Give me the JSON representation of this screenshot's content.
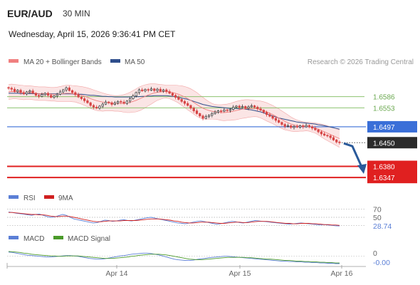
{
  "header": {
    "pair": "EUR/AUD",
    "timeframe": "30 MIN",
    "datetime": "Wednesday, April 15, 2026 9:36:41 PM CET"
  },
  "legend": {
    "ma20_label": "MA 20 + Bollinger Bands",
    "ma50_label": "MA 50",
    "source": "Research © 2026 Trading Central",
    "rsi_label": "RSI",
    "rsi_ma_label": "9MA",
    "macd_label": "MACD",
    "macd_signal_label": "MACD Signal"
  },
  "colors": {
    "price_up": "#333333",
    "price_down": "#d64545",
    "ma20": "#f08080",
    "bollinger": "#f7c5c5",
    "ma50": "#2e4e8c",
    "support": "#e02020",
    "resistance": "#8dc26f",
    "current": "#3a6fd8",
    "arrow": "#2a5a9a",
    "rsi": "#5b7fd6",
    "rsi_ma": "#d02020",
    "macd": "#5b7fd6",
    "macd_signal": "#4a9a2a"
  },
  "chart_data": [
    {
      "type": "candlestick",
      "name": "price",
      "x_ticks": [
        "Apr 14",
        "Apr 15",
        "Apr 16"
      ],
      "ylim": [
        1.632,
        1.664
      ],
      "levels": [
        {
          "label": "1.6586",
          "value": 1.6586,
          "kind": "resistance"
        },
        {
          "label": "1.6553",
          "value": 1.6553,
          "kind": "resistance"
        },
        {
          "label": "1.6497",
          "value": 1.6497,
          "kind": "current-line"
        },
        {
          "label": "1.6450",
          "value": 1.645,
          "kind": "last-price"
        },
        {
          "label": "1.6380",
          "value": 1.638,
          "kind": "support"
        },
        {
          "label": "1.6347",
          "value": 1.6347,
          "kind": "support"
        }
      ],
      "close": [
        1.6611,
        1.6608,
        1.6601,
        1.6605,
        1.6598,
        1.6594,
        1.66,
        1.6603,
        1.6596,
        1.659,
        1.6587,
        1.6592,
        1.6596,
        1.659,
        1.6584,
        1.6588,
        1.6593,
        1.66,
        1.6606,
        1.6612,
        1.6604,
        1.6598,
        1.6592,
        1.6585,
        1.658,
        1.6574,
        1.6568,
        1.656,
        1.6555,
        1.6552,
        1.6558,
        1.6564,
        1.657,
        1.6568,
        1.6563,
        1.6567,
        1.6572,
        1.657,
        1.6566,
        1.6573,
        1.658,
        1.6588,
        1.6598,
        1.6606,
        1.6603,
        1.6607,
        1.6605,
        1.6609,
        1.6604,
        1.6608,
        1.6602,
        1.6606,
        1.6601,
        1.6596,
        1.659,
        1.6584,
        1.6578,
        1.6572,
        1.6566,
        1.656,
        1.6552,
        1.6544,
        1.6536,
        1.6529,
        1.6522,
        1.6527,
        1.6531,
        1.6536,
        1.654,
        1.6544,
        1.6543,
        1.6547,
        1.6545,
        1.6548,
        1.6555,
        1.6558,
        1.6554,
        1.6557,
        1.6552,
        1.6556,
        1.6559,
        1.6555,
        1.655,
        1.6546,
        1.654,
        1.6533,
        1.6528,
        1.6522,
        1.6516,
        1.651,
        1.6504,
        1.6498,
        1.65,
        1.6495,
        1.6498,
        1.6496,
        1.65,
        1.6497,
        1.6501,
        1.6497,
        1.6493,
        1.6488,
        1.6482,
        1.6476,
        1.6472,
        1.647,
        1.6465,
        1.6458,
        1.6452,
        1.645
      ],
      "ma20": [
        1.66,
        1.6601,
        1.6601,
        1.66,
        1.6599,
        1.6598,
        1.6598,
        1.6598,
        1.6597,
        1.6596,
        1.6595,
        1.6595,
        1.6595,
        1.6594,
        1.6593,
        1.6593,
        1.6593,
        1.6594,
        1.6595,
        1.6596,
        1.6596,
        1.6595,
        1.6594,
        1.6592,
        1.659,
        1.6587,
        1.6584,
        1.658,
        1.6577,
        1.6574,
        1.6572,
        1.657,
        1.6569,
        1.6568,
        1.6567,
        1.6566,
        1.6566,
        1.6566,
        1.6566,
        1.6567,
        1.6569,
        1.6572,
        1.6575,
        1.6579,
        1.6583,
        1.6587,
        1.6591,
        1.6594,
        1.6597,
        1.6599,
        1.66,
        1.6601,
        1.6601,
        1.66,
        1.6598,
        1.6596,
        1.6593,
        1.6589,
        1.6585,
        1.658,
        1.6575,
        1.6569,
        1.6563,
        1.6557,
        1.6552,
        1.6548,
        1.6545,
        1.6543,
        1.6541,
        1.654,
        1.6539,
        1.6539,
        1.654,
        1.6541,
        1.6543,
        1.6545,
        1.6547,
        1.6549,
        1.655,
        1.6551,
        1.6551,
        1.6551,
        1.655,
        1.6548,
        1.6545,
        1.6541,
        1.6537,
        1.6533,
        1.6528,
        1.6523,
        1.6518,
        1.6513,
        1.6509,
        1.6505,
        1.6502,
        1.65,
        1.6499,
        1.6498,
        1.6498,
        1.6497,
        1.6495,
        1.6493,
        1.649,
        1.6486,
        1.6482,
        1.6478,
        1.6474,
        1.647,
        1.6466,
        1.6462
      ],
      "bb_upper": [
        1.6622,
        1.6623,
        1.6622,
        1.6621,
        1.662,
        1.6619,
        1.6618,
        1.6618,
        1.6617,
        1.6616,
        1.6615,
        1.6615,
        1.6615,
        1.6614,
        1.6613,
        1.6613,
        1.6614,
        1.6616,
        1.6618,
        1.662,
        1.662,
        1.6619,
        1.6618,
        1.6617,
        1.6616,
        1.6614,
        1.6612,
        1.6609,
        1.6606,
        1.6603,
        1.66,
        1.6597,
        1.6594,
        1.6592,
        1.659,
        1.6589,
        1.6589,
        1.659,
        1.6592,
        1.6595,
        1.6599,
        1.6604,
        1.6609,
        1.6614,
        1.6618,
        1.6621,
        1.6623,
        1.6624,
        1.6624,
        1.6623,
        1.6622,
        1.6621,
        1.662,
        1.662,
        1.662,
        1.662,
        1.6619,
        1.6618,
        1.6616,
        1.6613,
        1.6609,
        1.6604,
        1.6598,
        1.6591,
        1.6584,
        1.6577,
        1.6571,
        1.6566,
        1.6563,
        1.6562,
        1.6562,
        1.6563,
        1.6564,
        1.6566,
        1.6569,
        1.6572,
        1.6574,
        1.6576,
        1.6577,
        1.6577,
        1.6576,
        1.6575,
        1.6574,
        1.6573,
        1.6571,
        1.6568,
        1.6564,
        1.656,
        1.6555,
        1.655,
        1.6544,
        1.6538,
        1.6532,
        1.6526,
        1.6521,
        1.6517,
        1.6514,
        1.6512,
        1.6511,
        1.651,
        1.6509,
        1.6508,
        1.6507,
        1.6505,
        1.6503,
        1.65,
        1.6497,
        1.6494,
        1.6491,
        1.6488
      ],
      "bb_lower": [
        1.6578,
        1.6579,
        1.658,
        1.6579,
        1.6578,
        1.6577,
        1.6578,
        1.6578,
        1.6577,
        1.6576,
        1.6575,
        1.6575,
        1.6575,
        1.6574,
        1.6573,
        1.6573,
        1.6572,
        1.6572,
        1.6572,
        1.6572,
        1.6572,
        1.6571,
        1.657,
        1.6567,
        1.6564,
        1.656,
        1.6556,
        1.6551,
        1.6548,
        1.6545,
        1.6544,
        1.6543,
        1.6544,
        1.6544,
        1.6544,
        1.6543,
        1.6543,
        1.6542,
        1.654,
        1.6539,
        1.6539,
        1.654,
        1.6541,
        1.6544,
        1.6548,
        1.6553,
        1.6559,
        1.6564,
        1.657,
        1.6575,
        1.6578,
        1.6581,
        1.6582,
        1.658,
        1.6576,
        1.6572,
        1.6567,
        1.656,
        1.6554,
        1.6547,
        1.6541,
        1.6534,
        1.6528,
        1.6523,
        1.652,
        1.6519,
        1.6519,
        1.652,
        1.6519,
        1.6518,
        1.6516,
        1.6515,
        1.6516,
        1.6516,
        1.6517,
        1.6518,
        1.652,
        1.6522,
        1.6523,
        1.6525,
        1.6526,
        1.6527,
        1.6526,
        1.6523,
        1.6519,
        1.6514,
        1.651,
        1.6506,
        1.6501,
        1.6496,
        1.6492,
        1.6488,
        1.6486,
        1.6484,
        1.6483,
        1.6483,
        1.6484,
        1.6484,
        1.6485,
        1.6484,
        1.6481,
        1.6478,
        1.6473,
        1.6467,
        1.6461,
        1.6456,
        1.6451,
        1.6446,
        1.6441,
        1.6436
      ],
      "ma50": [
        1.6596,
        1.6596,
        1.6596,
        1.6596,
        1.6595,
        1.6595,
        1.6595,
        1.6595,
        1.6595,
        1.6595,
        1.6594,
        1.6594,
        1.6594,
        1.6594,
        1.6594,
        1.6594,
        1.6594,
        1.6594,
        1.6594,
        1.6594,
        1.6594,
        1.6594,
        1.6593,
        1.6593,
        1.6593,
        1.6592,
        1.6591,
        1.659,
        1.659,
        1.6589,
        1.6588,
        1.6587,
        1.6587,
        1.6586,
        1.6586,
        1.6585,
        1.6585,
        1.6585,
        1.6585,
        1.6585,
        1.6585,
        1.6585,
        1.6586,
        1.6586,
        1.6587,
        1.6587,
        1.6588,
        1.6588,
        1.6589,
        1.6589,
        1.6589,
        1.6589,
        1.6589,
        1.6588,
        1.6587,
        1.6586,
        1.6584,
        1.6582,
        1.658,
        1.6578,
        1.6575,
        1.6572,
        1.6569,
        1.6566,
        1.6563,
        1.6561,
        1.6559,
        1.6557,
        1.6556,
        1.6555,
        1.6554,
        1.6553,
        1.6552,
        1.6551,
        1.6551,
        1.6551,
        1.655,
        1.655,
        1.6549,
        1.6548,
        1.6547,
        1.6545,
        1.6543,
        1.6541,
        1.6538,
        1.6535,
        1.6532,
        1.6529,
        1.6526,
        1.6523,
        1.6521,
        1.6519,
        1.6517,
        1.6515,
        1.6513,
        1.6511,
        1.651,
        1.6509,
        1.6508,
        1.6507,
        1.6506,
        1.6505,
        1.6503,
        1.6502,
        1.65,
        1.6498,
        1.6496,
        1.6494,
        1.6492,
        1.649
      ]
    },
    {
      "type": "line",
      "name": "rsi",
      "ylim": [
        20,
        80
      ],
      "levels": [
        70,
        50,
        30
      ],
      "level_labels": [
        "70",
        "50"
      ],
      "last_label": "28.74",
      "series": [
        {
          "key": "rsi",
          "values": [
            63,
            62,
            60,
            59,
            58,
            56,
            55,
            57,
            58,
            55,
            52,
            50,
            51,
            54,
            57,
            55,
            50,
            46,
            44,
            42,
            40,
            38,
            36,
            37,
            40,
            43,
            42,
            40,
            41,
            43,
            44,
            42,
            41,
            43,
            45,
            47,
            49,
            50,
            48,
            46,
            44,
            42,
            40,
            38,
            36,
            35,
            34,
            36,
            38,
            40,
            41,
            39,
            37,
            35,
            33,
            34,
            36,
            38,
            40,
            39,
            37,
            36,
            38,
            40,
            42,
            41,
            40,
            39,
            38,
            37,
            36,
            35,
            34,
            33,
            34,
            35,
            36,
            35,
            34,
            33,
            32,
            31,
            32,
            31,
            30,
            29,
            28.74
          ]
        },
        {
          "key": "rsi_ma",
          "values": [
            62,
            62,
            61,
            60,
            59,
            58,
            57,
            57,
            56,
            56,
            55,
            53,
            52,
            52,
            53,
            53,
            52,
            50,
            48,
            46,
            44,
            42,
            40,
            39,
            39,
            40,
            41,
            41,
            41,
            41,
            42,
            42,
            42,
            42,
            43,
            44,
            45,
            46,
            46,
            46,
            45,
            44,
            43,
            41,
            40,
            38,
            37,
            36,
            36,
            37,
            38,
            38,
            38,
            37,
            36,
            35,
            35,
            36,
            37,
            38,
            38,
            37,
            37,
            38,
            39,
            40,
            40,
            40,
            39,
            38,
            37,
            36,
            35,
            35,
            34,
            34,
            35,
            35,
            35,
            34,
            34,
            33,
            32,
            32,
            31,
            31,
            30
          ]
        }
      ]
    },
    {
      "type": "line",
      "name": "macd",
      "ylim": [
        -0.0025,
        0.003
      ],
      "zero_label": "0",
      "last_label": "-0.00",
      "series": [
        {
          "key": "macd",
          "values": [
            0.0012,
            0.0011,
            0.0009,
            0.0007,
            0.0005,
            0.0003,
            0.0002,
            0.0001,
            0.0,
            -0.0001,
            -0.0002,
            -0.0002,
            -0.0001,
            0.0,
            0.0001,
            0.0002,
            0.0002,
            0.0001,
            0.0,
            -0.0002,
            -0.0004,
            -0.0006,
            -0.0007,
            -0.0008,
            -0.0008,
            -0.0007,
            -0.0005,
            -0.0003,
            -0.0001,
            0.0001,
            0.0002,
            0.0004,
            0.0006,
            0.0007,
            0.0008,
            0.0009,
            0.0009,
            0.0008,
            0.0006,
            0.0004,
            0.0001,
            -0.0002,
            -0.0005,
            -0.0008,
            -0.001,
            -0.0011,
            -0.0012,
            -0.0012,
            -0.0011,
            -0.0009,
            -0.0007,
            -0.0006,
            -0.0004,
            -0.0003,
            -0.0002,
            -0.0001,
            0.0,
            0.0,
            -0.0001,
            -0.0002,
            -0.0003,
            -0.0004,
            -0.0005,
            -0.0006,
            -0.0007,
            -0.0008,
            -0.0009,
            -0.001,
            -0.0011,
            -0.0012,
            -0.0013,
            -0.0014,
            -0.0014,
            -0.0015,
            -0.0015,
            -0.0016,
            -0.0016,
            -0.0017,
            -0.0017,
            -0.0018,
            -0.0018,
            -0.0019,
            -0.0019,
            -0.002,
            -0.002,
            -0.0021,
            -0.0021
          ]
        },
        {
          "key": "macd_signal",
          "values": [
            0.0014,
            0.0013,
            0.0012,
            0.0011,
            0.0009,
            0.0008,
            0.0006,
            0.0005,
            0.0004,
            0.0003,
            0.0002,
            0.0001,
            0.0001,
            0.0,
            0.0,
            0.0001,
            0.0001,
            0.0001,
            0.0001,
            0.0,
            -0.0001,
            -0.0002,
            -0.0003,
            -0.0004,
            -0.0005,
            -0.0006,
            -0.0006,
            -0.0006,
            -0.0005,
            -0.0004,
            -0.0003,
            -0.0002,
            0.0,
            0.0001,
            0.0003,
            0.0004,
            0.0005,
            0.0006,
            0.0006,
            0.0006,
            0.0005,
            0.0004,
            0.0002,
            0.0,
            -0.0002,
            -0.0004,
            -0.0006,
            -0.0008,
            -0.0009,
            -0.001,
            -0.001,
            -0.0009,
            -0.0008,
            -0.0007,
            -0.0006,
            -0.0005,
            -0.0004,
            -0.0003,
            -0.0003,
            -0.0003,
            -0.0003,
            -0.0003,
            -0.0004,
            -0.0004,
            -0.0005,
            -0.0006,
            -0.0007,
            -0.0008,
            -0.0008,
            -0.0009,
            -0.001,
            -0.0011,
            -0.0012,
            -0.0012,
            -0.0013,
            -0.0014,
            -0.0014,
            -0.0015,
            -0.0015,
            -0.0016,
            -0.0016,
            -0.0017,
            -0.0017,
            -0.0018,
            -0.0018,
            -0.0019,
            -0.0019
          ]
        }
      ]
    }
  ]
}
